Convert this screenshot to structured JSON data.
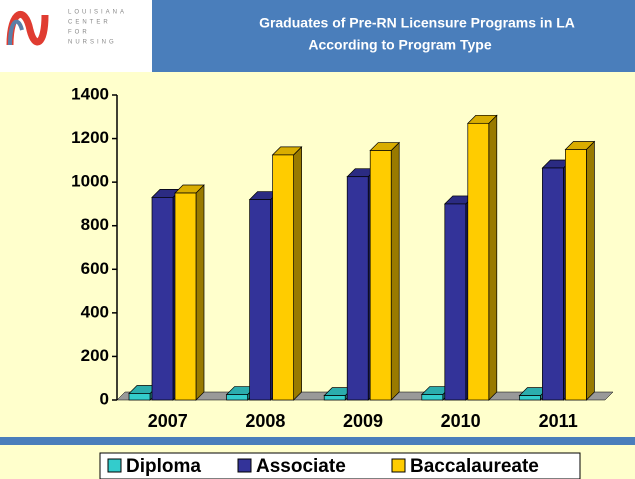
{
  "logo": {
    "lines": [
      "LOUISIANA",
      "CENTER",
      "FOR",
      "NURSING"
    ]
  },
  "chart_data": {
    "type": "bar3d",
    "title": [
      "Graduates of Pre-RN Licensure Programs in LA",
      "According to Program Type"
    ],
    "categories": [
      "2007",
      "2008",
      "2009",
      "2010",
      "2011"
    ],
    "series": [
      {
        "name": "Diploma",
        "color": "#33cccc",
        "values": [
          30,
          25,
          20,
          25,
          20
        ]
      },
      {
        "name": "Associate",
        "color": "#333399",
        "values": [
          930,
          920,
          1025,
          900,
          1065
        ]
      },
      {
        "name": "Baccalaureate",
        "color": "#ffcc00",
        "values": [
          950,
          1125,
          1145,
          1270,
          1150
        ]
      }
    ],
    "ylim": [
      0,
      1400
    ],
    "yticks": [
      0,
      200,
      400,
      600,
      800,
      1000,
      1200,
      1400
    ],
    "legend": "bottom"
  }
}
